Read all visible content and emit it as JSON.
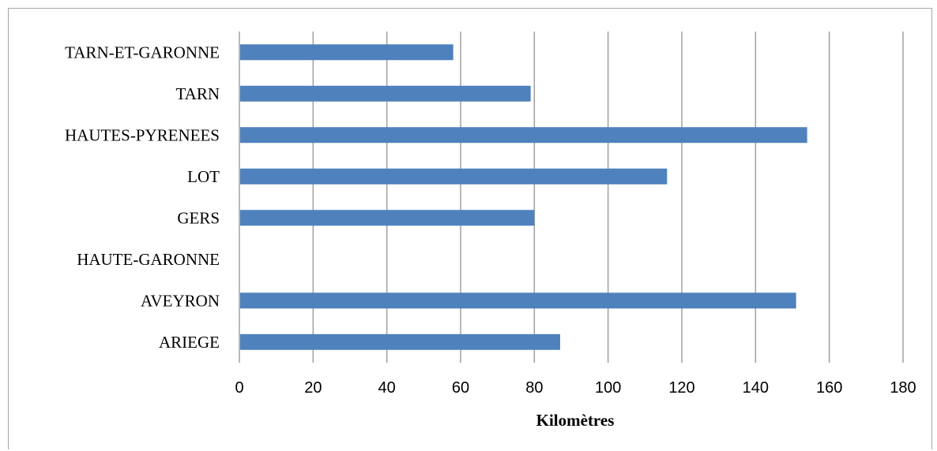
{
  "chart_data": {
    "type": "bar",
    "orientation": "horizontal",
    "categories": [
      "TARN-ET-GARONNE",
      "TARN",
      "HAUTES-PYRENEES",
      "LOT",
      "GERS",
      "HAUTE-GARONNE",
      "AVEYRON",
      "ARIEGE"
    ],
    "values": [
      58,
      79,
      154,
      116,
      80,
      null,
      151,
      87
    ],
    "xlabel": "Kilomètres",
    "ylabel": "",
    "xlim": [
      0,
      180
    ],
    "xticks": [
      "0",
      "20",
      "40",
      "60",
      "80",
      "100",
      "120",
      "140",
      "160",
      "180"
    ],
    "grid": "vertical",
    "legend": "none",
    "colors": {
      "bar": "#4f81bd",
      "grid": "#a0a0a0",
      "frame": "#a6a6a6"
    }
  }
}
